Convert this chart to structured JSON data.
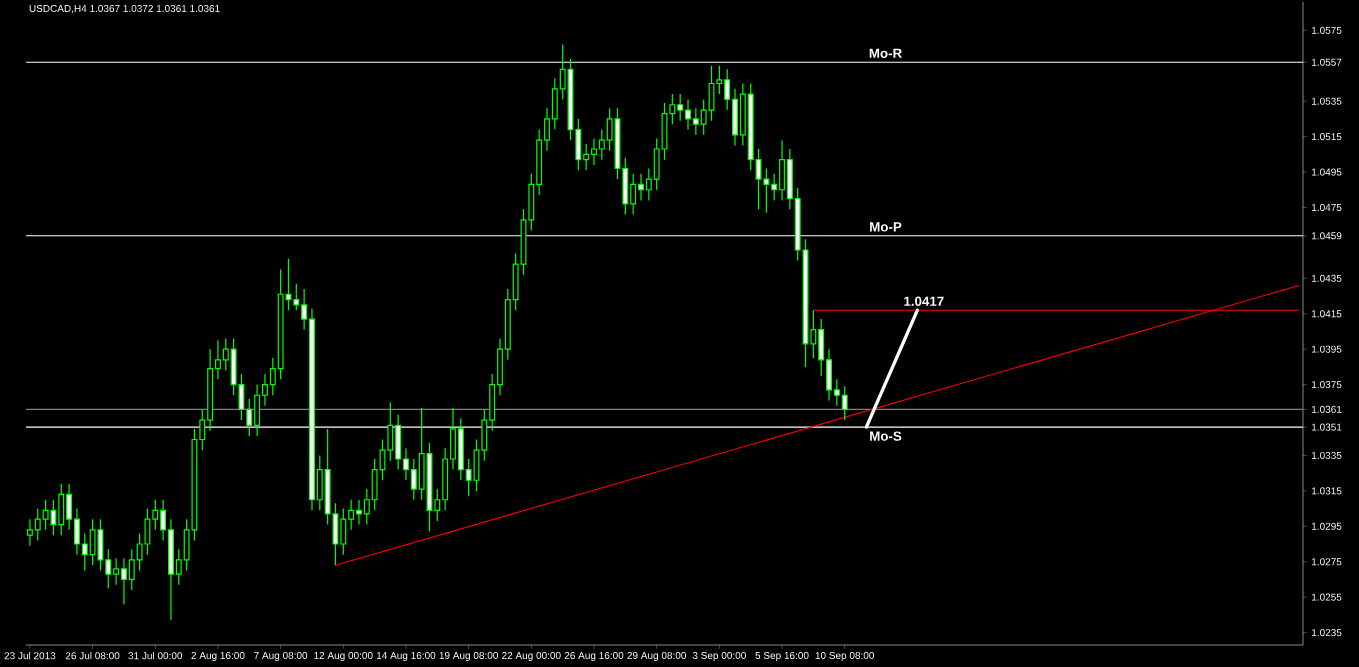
{
  "chart_data": {
    "type": "candlestick",
    "title": "USDCAD,H4  1.0367 1.0372 1.0361 1.0361",
    "color": "#00ff00",
    "categories": [
      "23 Jul 2013",
      null,
      null,
      null,
      null,
      null,
      null,
      null,
      "26 Jul 08:00",
      null,
      null,
      null,
      null,
      null,
      null,
      null,
      "31 Jul 00:00",
      null,
      null,
      null,
      null,
      null,
      null,
      null,
      "2 Aug 16:00",
      null,
      null,
      null,
      null,
      null,
      null,
      null,
      "7 Aug 08:00",
      null,
      null,
      null,
      null,
      null,
      null,
      null,
      "12 Aug 00:00",
      null,
      null,
      null,
      null,
      null,
      null,
      null,
      "14 Aug 16:00",
      null,
      null,
      null,
      null,
      null,
      null,
      null,
      "19 Aug 08:00",
      null,
      null,
      null,
      null,
      null,
      null,
      null,
      "22 Aug 00:00",
      null,
      null,
      null,
      null,
      null,
      null,
      null,
      "26 Aug 16:00",
      null,
      null,
      null,
      null,
      null,
      null,
      null,
      "29 Aug 08:00",
      null,
      null,
      null,
      null,
      null,
      null,
      null,
      "3 Sep 00:00",
      null,
      null,
      null,
      null,
      null,
      null,
      null,
      "5 Sep 16:00",
      null,
      null,
      null,
      null,
      null,
      null,
      null,
      "10 Sep 08:00",
      null,
      null,
      null,
      null,
      null,
      null,
      null,
      null,
      null,
      null,
      null,
      null,
      null,
      null,
      null,
      null,
      null,
      null,
      null,
      null,
      null,
      null,
      null,
      null,
      null,
      null,
      null,
      null,
      null,
      null,
      null,
      null,
      null,
      null,
      null,
      null,
      null,
      null,
      null,
      null,
      null,
      null,
      null,
      null,
      null,
      null,
      null,
      null,
      null,
      null,
      null,
      null,
      null,
      null,
      null,
      null,
      null,
      null
    ],
    "ohlc": [
      [
        1.029,
        1.0299,
        1.0284,
        1.0293
      ],
      [
        1.0293,
        1.0305,
        1.0287,
        1.0299
      ],
      [
        1.0299,
        1.031,
        1.0293,
        1.0304
      ],
      [
        1.0304,
        1.031,
        1.029,
        1.0296
      ],
      [
        1.0296,
        1.0319,
        1.029,
        1.0313
      ],
      [
        1.0313,
        1.0319,
        1.0293,
        1.0299
      ],
      [
        1.0299,
        1.0305,
        1.0279,
        1.0285
      ],
      [
        1.0285,
        1.0291,
        1.027,
        1.0279
      ],
      [
        1.0279,
        1.0299,
        1.0273,
        1.0293
      ],
      [
        1.0293,
        1.0299,
        1.027,
        1.0276
      ],
      [
        1.0276,
        1.0282,
        1.026,
        1.0268
      ],
      [
        1.0268,
        1.0277,
        1.0262,
        1.0271
      ],
      [
        1.0271,
        1.0277,
        1.0251,
        1.0265
      ],
      [
        1.0265,
        1.0282,
        1.0259,
        1.0276
      ],
      [
        1.0276,
        1.0291,
        1.027,
        1.0285
      ],
      [
        1.0285,
        1.0305,
        1.0279,
        1.0299
      ],
      [
        1.0299,
        1.031,
        1.0293,
        1.0304
      ],
      [
        1.0304,
        1.031,
        1.0287,
        1.0293
      ],
      [
        1.0293,
        1.0299,
        1.0242,
        1.0268
      ],
      [
        1.0268,
        1.0282,
        1.0262,
        1.0276
      ],
      [
        1.0276,
        1.0299,
        1.027,
        1.0293
      ],
      [
        1.0293,
        1.035,
        1.0287,
        1.0344
      ],
      [
        1.0344,
        1.0361,
        1.0338,
        1.0355
      ],
      [
        1.0355,
        1.0395,
        1.0349,
        1.0384
      ],
      [
        1.0384,
        1.04,
        1.0378,
        1.0389
      ],
      [
        1.0389,
        1.0401,
        1.0383,
        1.0395
      ],
      [
        1.0395,
        1.0401,
        1.0369,
        1.0375
      ],
      [
        1.0375,
        1.0381,
        1.0355,
        1.0361
      ],
      [
        1.0361,
        1.0367,
        1.0346,
        1.0352
      ],
      [
        1.0352,
        1.0375,
        1.0346,
        1.0369
      ],
      [
        1.0369,
        1.0381,
        1.0363,
        1.0375
      ],
      [
        1.0375,
        1.039,
        1.0369,
        1.0384
      ],
      [
        1.0384,
        1.044,
        1.0378,
        1.0426
      ],
      [
        1.0426,
        1.0446,
        1.0417,
        1.0423
      ],
      [
        1.0423,
        1.0432,
        1.0417,
        1.042
      ],
      [
        1.042,
        1.0429,
        1.0406,
        1.0412
      ],
      [
        1.0412,
        1.0418,
        1.0304,
        1.031
      ],
      [
        1.031,
        1.0335,
        1.0304,
        1.0327
      ],
      [
        1.0327,
        1.035,
        1.0296,
        1.0302
      ],
      [
        1.0302,
        1.0308,
        1.0273,
        1.0285
      ],
      [
        1.0285,
        1.0305,
        1.0279,
        1.0299
      ],
      [
        1.0299,
        1.031,
        1.0293,
        1.0304
      ],
      [
        1.0304,
        1.031,
        1.0296,
        1.0302
      ],
      [
        1.0302,
        1.0316,
        1.0296,
        1.031
      ],
      [
        1.031,
        1.0333,
        1.0304,
        1.0327
      ],
      [
        1.0327,
        1.0344,
        1.0321,
        1.0338
      ],
      [
        1.0338,
        1.0365,
        1.0332,
        1.0352
      ],
      [
        1.0352,
        1.0358,
        1.0327,
        1.0333
      ],
      [
        1.0333,
        1.0339,
        1.0321,
        1.0327
      ],
      [
        1.0327,
        1.0333,
        1.031,
        1.0316
      ],
      [
        1.0316,
        1.0362,
        1.031,
        1.0336
      ],
      [
        1.0336,
        1.0342,
        1.0292,
        1.0304
      ],
      [
        1.0304,
        1.0316,
        1.0298,
        1.031
      ],
      [
        1.031,
        1.0339,
        1.0304,
        1.0333
      ],
      [
        1.0333,
        1.0362,
        1.0327,
        1.035
      ],
      [
        1.035,
        1.0356,
        1.0321,
        1.0327
      ],
      [
        1.0327,
        1.0333,
        1.0312,
        1.0321
      ],
      [
        1.0321,
        1.0344,
        1.0315,
        1.0338
      ],
      [
        1.0338,
        1.0361,
        1.0332,
        1.0355
      ],
      [
        1.0355,
        1.0381,
        1.0349,
        1.0375
      ],
      [
        1.0375,
        1.0401,
        1.0369,
        1.0395
      ],
      [
        1.0395,
        1.0429,
        1.0389,
        1.0423
      ],
      [
        1.0423,
        1.0449,
        1.0417,
        1.0443
      ],
      [
        1.0443,
        1.0474,
        1.0437,
        1.0468
      ],
      [
        1.0468,
        1.0494,
        1.0462,
        1.0488
      ],
      [
        1.0488,
        1.0519,
        1.0482,
        1.0513
      ],
      [
        1.0513,
        1.0531,
        1.0507,
        1.0525
      ],
      [
        1.0525,
        1.0548,
        1.0519,
        1.0542
      ],
      [
        1.0542,
        1.0567,
        1.0536,
        1.0553
      ],
      [
        1.0553,
        1.0559,
        1.0513,
        1.0519
      ],
      [
        1.0519,
        1.0525,
        1.0496,
        1.0502
      ],
      [
        1.0502,
        1.0511,
        1.0496,
        1.0505
      ],
      [
        1.0505,
        1.0514,
        1.0499,
        1.0508
      ],
      [
        1.0508,
        1.0519,
        1.0502,
        1.0513
      ],
      [
        1.0513,
        1.0531,
        1.0507,
        1.0525
      ],
      [
        1.0525,
        1.0531,
        1.0491,
        1.0497
      ],
      [
        1.0497,
        1.0503,
        1.0471,
        1.0477
      ],
      [
        1.0477,
        1.0494,
        1.0471,
        1.0488
      ],
      [
        1.0488,
        1.0494,
        1.0479,
        1.0485
      ],
      [
        1.0485,
        1.0497,
        1.0479,
        1.0491
      ],
      [
        1.0491,
        1.0514,
        1.0485,
        1.0508
      ],
      [
        1.0508,
        1.0534,
        1.0502,
        1.0528
      ],
      [
        1.0528,
        1.0539,
        1.0522,
        1.0533
      ],
      [
        1.0533,
        1.0539,
        1.0524,
        1.053
      ],
      [
        1.053,
        1.0536,
        1.0519,
        1.0525
      ],
      [
        1.0525,
        1.0531,
        1.0516,
        1.0522
      ],
      [
        1.0522,
        1.0536,
        1.0516,
        1.053
      ],
      [
        1.053,
        1.0555,
        1.0524,
        1.0545
      ],
      [
        1.0545,
        1.0555,
        1.0539,
        1.0547
      ],
      [
        1.0547,
        1.0553,
        1.053,
        1.0536
      ],
      [
        1.0536,
        1.0542,
        1.051,
        1.0516
      ],
      [
        1.0516,
        1.0545,
        1.051,
        1.0539
      ],
      [
        1.0539,
        1.0545,
        1.0496,
        1.0502
      ],
      [
        1.0502,
        1.0508,
        1.0474,
        1.0491
      ],
      [
        1.0491,
        1.0497,
        1.0472,
        1.0488
      ],
      [
        1.0488,
        1.0494,
        1.0479,
        1.0485
      ],
      [
        1.0485,
        1.0513,
        1.0479,
        1.0502
      ],
      [
        1.0502,
        1.0508,
        1.0474,
        1.048
      ],
      [
        1.048,
        1.0486,
        1.0445,
        1.0451
      ],
      [
        1.0451,
        1.0457,
        1.0385,
        1.0398
      ],
      [
        1.0398,
        1.0417,
        1.039,
        1.0406
      ],
      [
        1.0406,
        1.0412,
        1.038,
        1.0389
      ],
      [
        1.0389,
        1.0395,
        1.0366,
        1.0372
      ],
      [
        1.0372,
        1.0378,
        1.0363,
        1.0369
      ],
      [
        1.0369,
        1.0374,
        1.0355,
        1.0361
      ],
      null,
      null,
      null,
      null,
      null,
      null,
      null,
      null,
      null,
      null,
      null,
      null,
      null,
      null,
      null,
      null,
      null,
      null,
      null,
      null,
      null,
      null,
      null,
      null,
      null,
      null,
      null,
      null,
      null,
      null,
      null,
      null,
      null,
      null,
      null,
      null,
      null,
      null,
      null,
      null,
      null,
      null,
      null,
      null,
      null,
      null,
      null,
      null,
      null,
      null,
      null,
      null,
      null,
      null,
      null,
      null,
      null,
      null
    ],
    "series": [
      {
        "type": "line",
        "color": "#ff0000",
        "values": [
          null,
          null,
          null,
          null,
          null,
          null,
          null,
          null,
          null,
          null,
          null,
          null,
          null,
          null,
          null,
          null,
          null,
          null,
          null,
          null,
          null,
          null,
          null,
          null,
          null,
          null,
          null,
          null,
          null,
          null,
          null,
          null,
          null,
          null,
          null,
          null,
          null,
          null,
          null,
          1.0273,
          null,
          null,
          null,
          null,
          null,
          null,
          null,
          null,
          null,
          null,
          null,
          null,
          null,
          null,
          null,
          null,
          null,
          null,
          null,
          null,
          null,
          null,
          null,
          null,
          null,
          null,
          null,
          null,
          null,
          null,
          null,
          null,
          null,
          null,
          null,
          null,
          null,
          null,
          null,
          null,
          null,
          null,
          null,
          null,
          null,
          null,
          null,
          null,
          null,
          null,
          null,
          null,
          null,
          null,
          null,
          null,
          null,
          null,
          null,
          null,
          null,
          null,
          null,
          null,
          null,
          null,
          null,
          null,
          null,
          null,
          null,
          null,
          null,
          null,
          null,
          null,
          null,
          null,
          null,
          null,
          null,
          null,
          null,
          null,
          null,
          null,
          null,
          null,
          null,
          null,
          null,
          null,
          null,
          null,
          null,
          null,
          null,
          null,
          null,
          null,
          null,
          null,
          null,
          null,
          null,
          null,
          null,
          null,
          null,
          null,
          null,
          null,
          null,
          null,
          null,
          null,
          null,
          null,
          null,
          null,
          null,
          null,
          1.0431
        ]
      },
      {
        "type": "line",
        "color": "#ff0000",
        "values": [
          null,
          null,
          null,
          null,
          null,
          null,
          null,
          null,
          null,
          null,
          null,
          null,
          null,
          null,
          null,
          null,
          null,
          null,
          null,
          null,
          null,
          null,
          null,
          null,
          null,
          null,
          null,
          null,
          null,
          null,
          null,
          null,
          null,
          null,
          null,
          null,
          null,
          null,
          null,
          null,
          null,
          null,
          null,
          null,
          null,
          null,
          null,
          null,
          null,
          null,
          null,
          null,
          null,
          null,
          null,
          null,
          null,
          null,
          null,
          null,
          null,
          null,
          null,
          null,
          null,
          null,
          null,
          null,
          null,
          null,
          null,
          null,
          null,
          null,
          null,
          null,
          null,
          null,
          null,
          null,
          null,
          null,
          null,
          null,
          null,
          null,
          null,
          null,
          null,
          null,
          null,
          null,
          null,
          null,
          null,
          null,
          null,
          null,
          null,
          null,
          1.0417,
          null,
          null,
          null,
          null,
          null,
          null,
          null,
          null,
          null,
          null,
          null,
          null,
          null,
          null,
          null,
          null,
          null,
          null,
          null,
          null,
          null,
          null,
          null,
          null,
          null,
          null,
          null,
          null,
          null,
          null,
          null,
          null,
          null,
          null,
          null,
          null,
          null,
          null,
          null,
          null,
          null,
          null,
          null,
          null,
          null,
          null,
          null,
          null,
          null,
          null,
          null,
          null,
          null,
          null,
          null,
          null,
          null,
          null,
          null,
          null,
          null,
          1.0417
        ]
      }
    ],
    "ref_lines": [
      {
        "axis": "y",
        "value": 1.0557,
        "label": "Mo-R",
        "color": "#ffffff"
      },
      {
        "axis": "y",
        "value": 1.0459,
        "label": "Mo-P",
        "color": "#ffffff"
      },
      {
        "axis": "y",
        "value": 1.0351,
        "label": "Mo-S",
        "color": "#ffffff"
      },
      {
        "axis": "y",
        "value": 1.0361,
        "color": "#808080"
      }
    ],
    "annotations": [
      {
        "text": "1.0417",
        "y": 1.0417
      }
    ],
    "ylim": [
      1.0228,
      1.0591
    ],
    "yticks": [
      1.0235,
      1.0255,
      1.0275,
      1.0295,
      1.0315,
      1.0335,
      1.0351,
      1.0361,
      1.0375,
      1.0395,
      1.0415,
      1.0435,
      1.0459,
      1.0475,
      1.0495,
      1.0515,
      1.0535,
      1.0557,
      1.0575
    ],
    "grid": false
  }
}
